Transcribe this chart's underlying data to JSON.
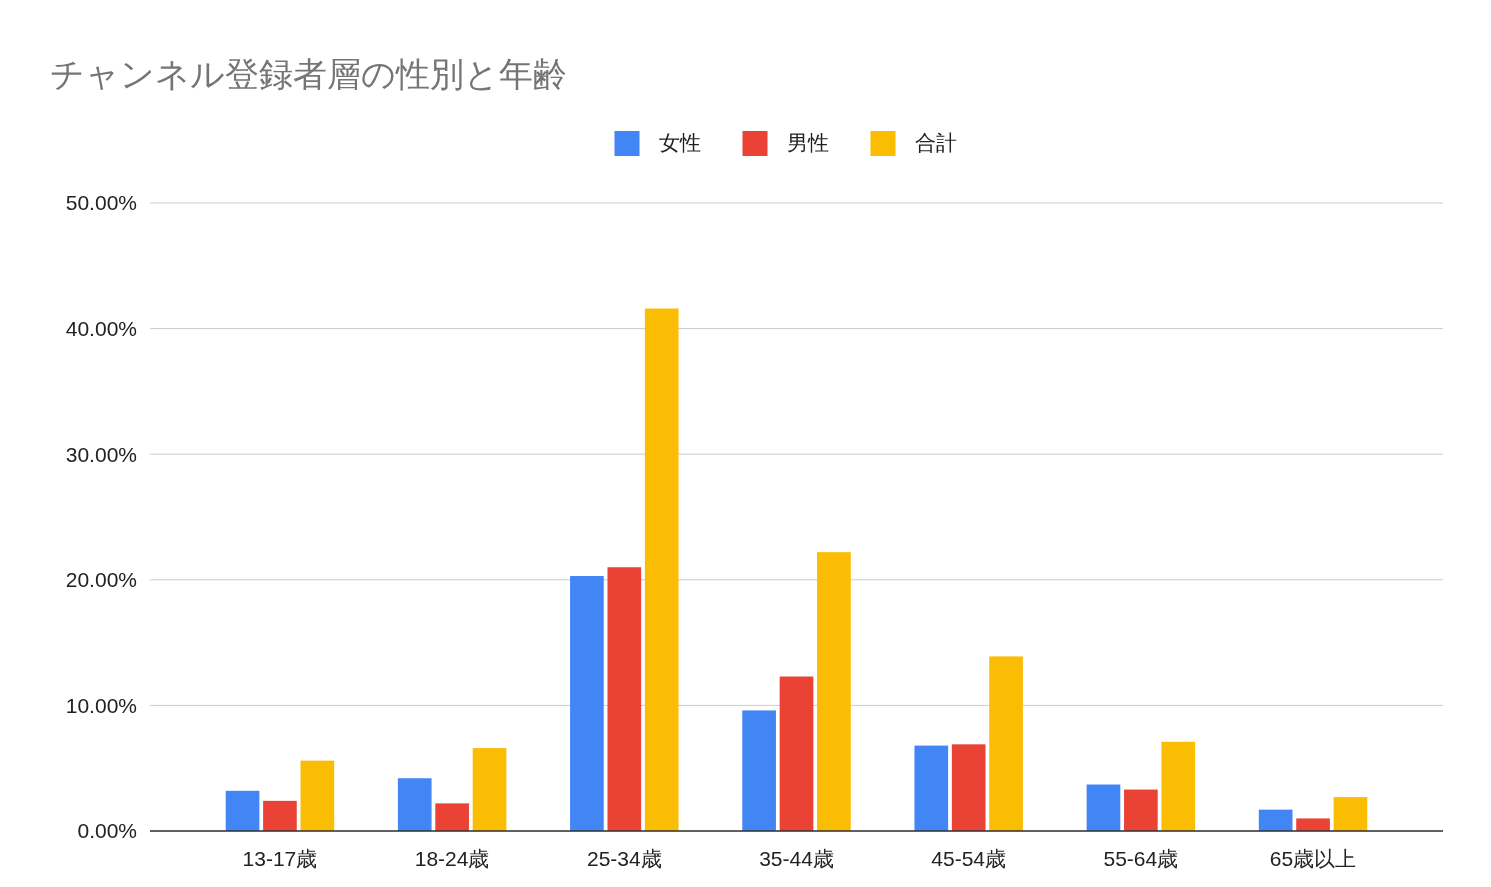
{
  "chart_data": {
    "type": "bar",
    "title": "チャンネル登録者層の性別と年齢",
    "categories": [
      "13-17歳",
      "18-24歳",
      "25-34歳",
      "35-44歳",
      "45-54歳",
      "55-64歳",
      "65歳以上"
    ],
    "series": [
      {
        "name": "女性",
        "color": "#4285f4",
        "values": [
          3.2,
          4.2,
          20.3,
          9.6,
          6.8,
          3.7,
          1.7
        ]
      },
      {
        "name": "男性",
        "color": "#ea4335",
        "values": [
          2.4,
          2.2,
          21.0,
          12.3,
          6.9,
          3.3,
          1.0
        ]
      },
      {
        "name": "合計",
        "color": "#fbbc04",
        "values": [
          5.6,
          6.6,
          41.6,
          22.2,
          13.9,
          7.1,
          2.7
        ]
      }
    ],
    "ylim": [
      0,
      50
    ],
    "yticks": [
      {
        "value": 0,
        "label": "0.00%"
      },
      {
        "value": 10,
        "label": "10.00%"
      },
      {
        "value": 20,
        "label": "20.00%"
      },
      {
        "value": 30,
        "label": "30.00%"
      },
      {
        "value": 40,
        "label": "40.00%"
      },
      {
        "value": 50,
        "label": "50.00%"
      }
    ],
    "grid": "y",
    "legend": "top"
  }
}
